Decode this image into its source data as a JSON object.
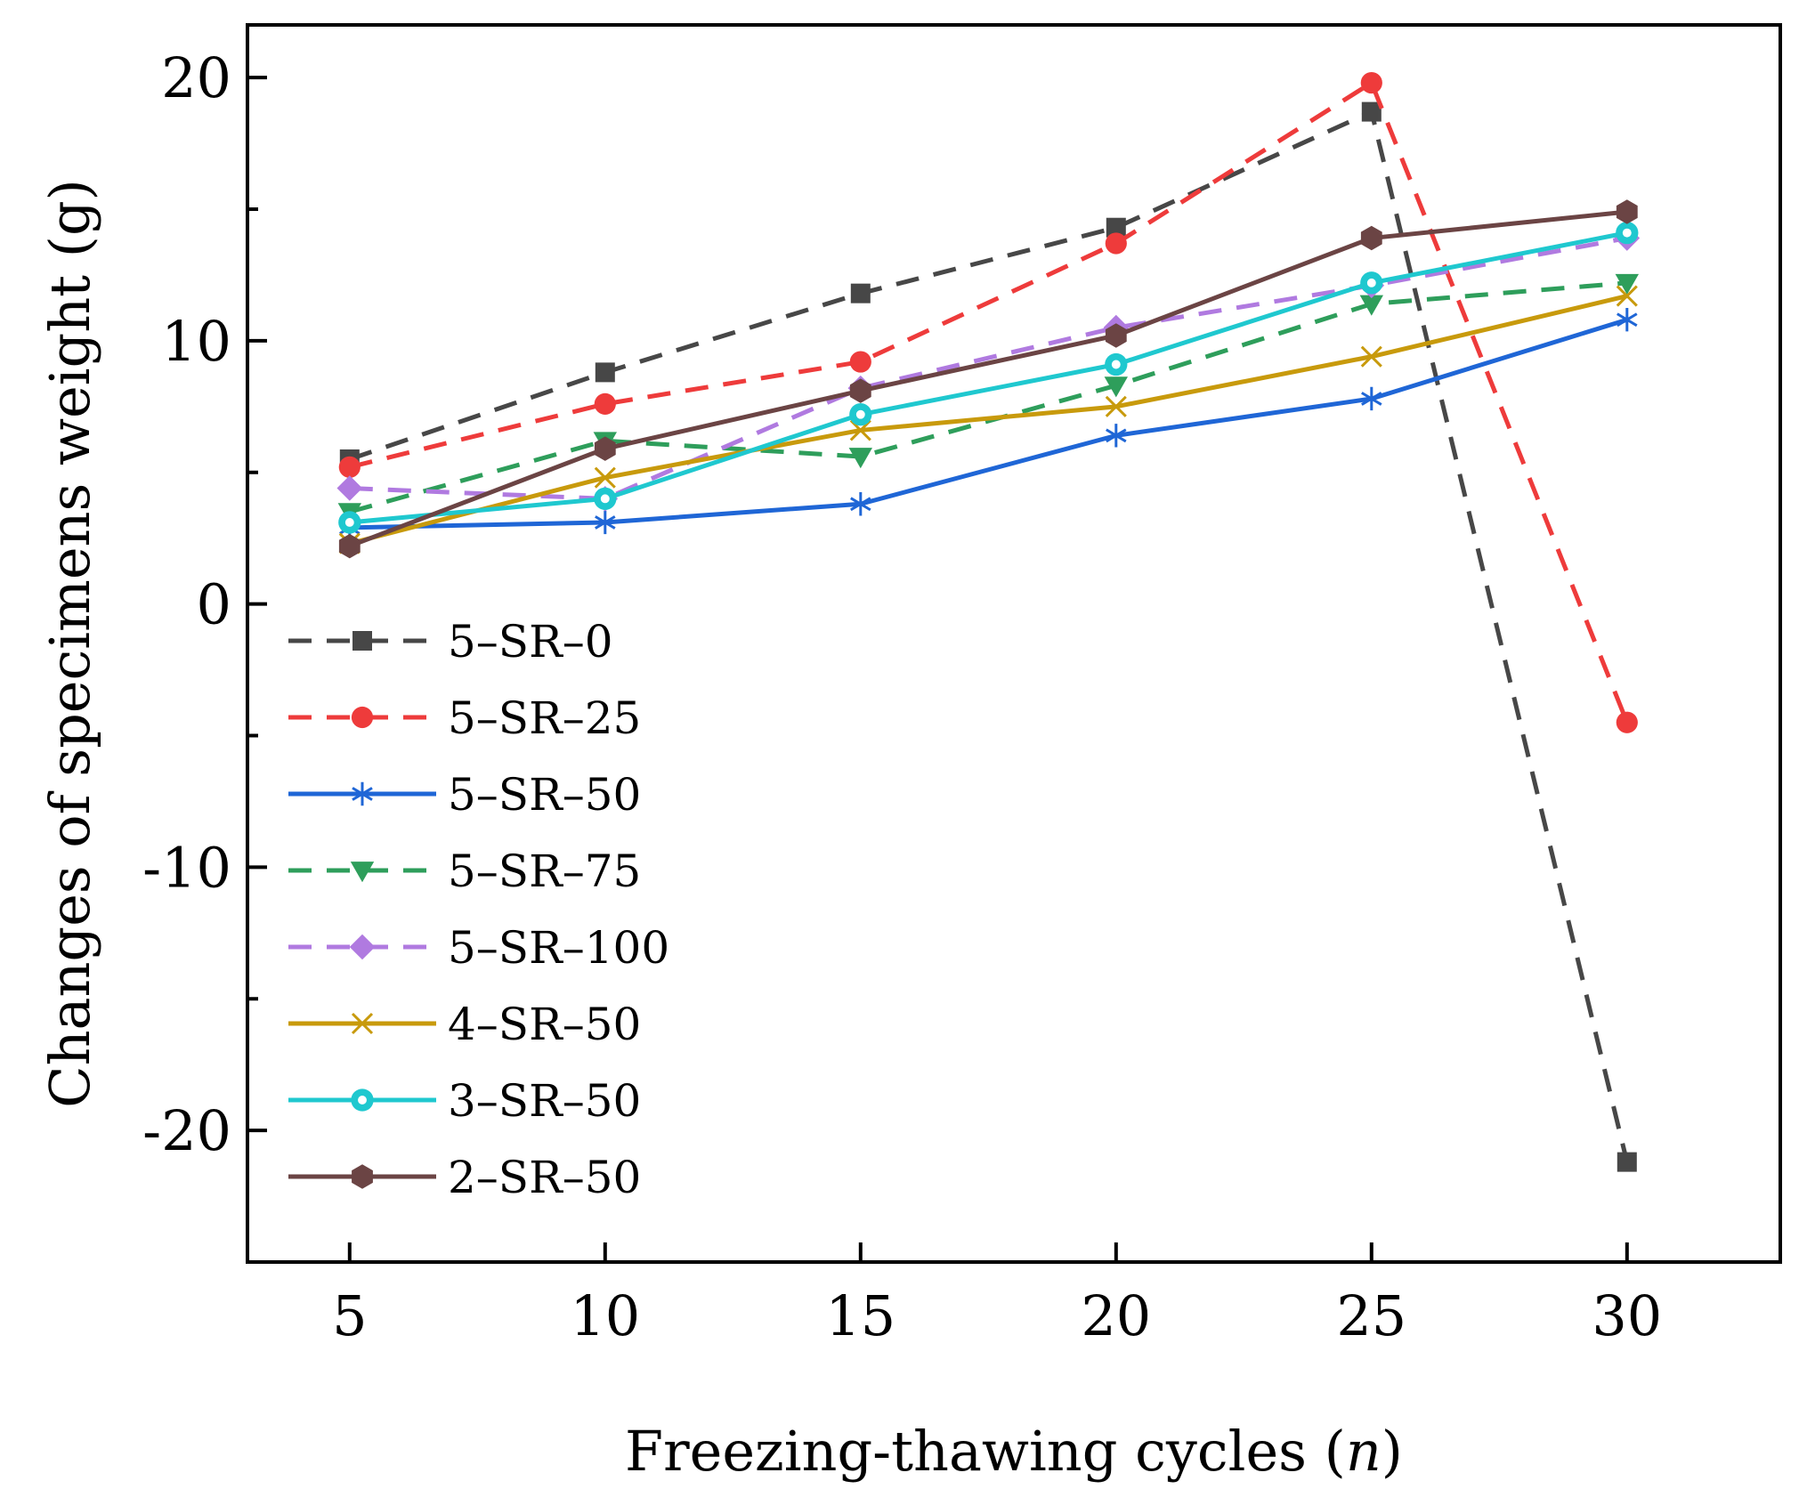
{
  "chart_data": {
    "type": "line",
    "title": "",
    "xlabel": "Freezing-thawing cycles (",
    "xlabel_var": "n",
    "xlabel_close": ")",
    "ylabel": "Changes of specimens weight (g)",
    "xlim": [
      3,
      33
    ],
    "ylim": [
      -25,
      22
    ],
    "x_ticks": [
      5,
      10,
      15,
      20,
      25,
      30
    ],
    "y_ticks": [
      -20,
      -10,
      0,
      10,
      20
    ],
    "y_minor_ticks": [
      -15,
      -5,
      5,
      15
    ],
    "x": [
      5,
      10,
      15,
      20,
      25,
      30
    ],
    "legend_position": "lower-left",
    "series": [
      {
        "name": "5–SR–0",
        "values": [
          5.5,
          8.8,
          11.8,
          14.3,
          18.7,
          -21.2
        ],
        "color": "#474747",
        "dash": true,
        "marker": "square"
      },
      {
        "name": "5–SR–25",
        "values": [
          5.2,
          7.6,
          9.2,
          13.7,
          19.8,
          -4.5
        ],
        "color": "#ee3b3b",
        "dash": true,
        "marker": "circle"
      },
      {
        "name": "5–SR–50",
        "values": [
          2.9,
          3.1,
          3.8,
          6.4,
          7.8,
          10.8
        ],
        "color": "#1f66d6",
        "dash": false,
        "marker": "asterisk"
      },
      {
        "name": "5–SR–75",
        "values": [
          3.5,
          6.2,
          5.6,
          8.3,
          11.4,
          12.2
        ],
        "color": "#2e9e5b",
        "dash": true,
        "marker": "triangle-down"
      },
      {
        "name": "5–SR–100",
        "values": [
          4.4,
          4.0,
          8.2,
          10.5,
          12.1,
          13.9
        ],
        "color": "#b07ae0",
        "dash": true,
        "marker": "diamond"
      },
      {
        "name": "4–SR–50",
        "values": [
          2.3,
          4.8,
          6.6,
          7.5,
          9.4,
          11.7
        ],
        "color": "#c89a0c",
        "dash": false,
        "marker": "x"
      },
      {
        "name": "3–SR–50",
        "values": [
          3.1,
          4.0,
          7.2,
          9.1,
          12.2,
          14.1
        ],
        "color": "#1fc8cf",
        "dash": false,
        "marker": "circle-ring"
      },
      {
        "name": "2–SR–50",
        "values": [
          2.2,
          5.9,
          8.1,
          10.2,
          13.9,
          14.9
        ],
        "color": "#6b4444",
        "dash": false,
        "marker": "hexagon"
      }
    ]
  }
}
